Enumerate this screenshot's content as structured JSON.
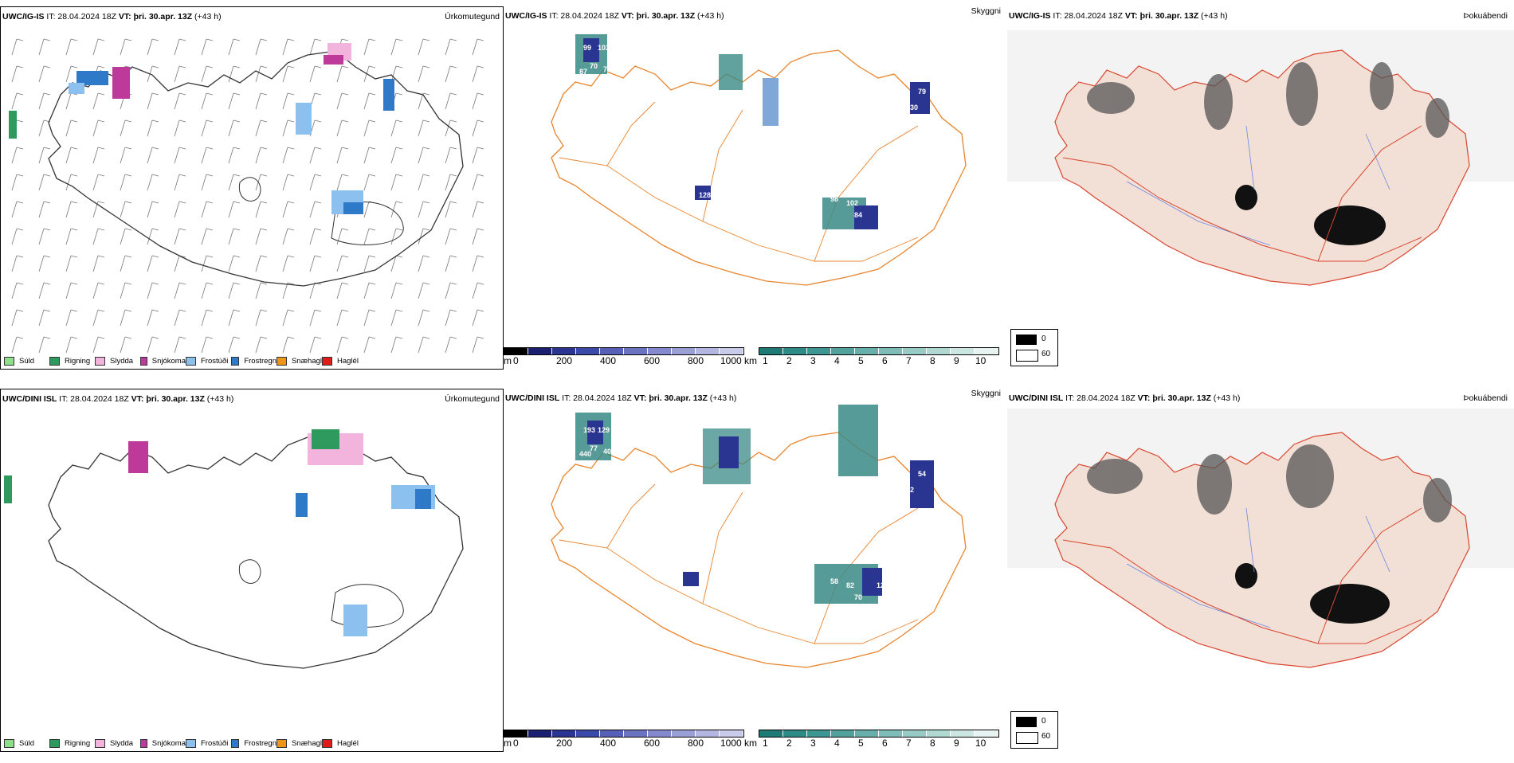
{
  "rows": [
    {
      "model": "UWC/IG-IS",
      "it": "IT: 28.04.2024 18Z",
      "vt": "VT: þri. 30.apr. 13Z",
      "lead": "(+43 h)",
      "titles": [
        "Úrkomutegund",
        "Skyggni",
        "Þokuábendi"
      ]
    },
    {
      "model": "UWC/DINI ISL",
      "it": "IT: 28.04.2024 18Z",
      "vt": "VT: þri. 30.apr. 13Z",
      "lead": "(+43 h)",
      "titles": [
        "Úrkomutegund",
        "Skyggni",
        "Þokuábendi"
      ]
    }
  ],
  "legend": [
    {
      "label": "Súld",
      "color": "#8fdf8a"
    },
    {
      "label": "Rigning",
      "color": "#2e9a5e"
    },
    {
      "label": "Slydda",
      "color": "#f2b3dc"
    },
    {
      "label": "Snjókoma",
      "color": "#bd3a9a"
    },
    {
      "label": "Frostúði",
      "color": "#8cc0ee"
    },
    {
      "label": "Frostregn",
      "color": "#2f7ac8"
    },
    {
      "label": "Snæhagl",
      "color": "#f0941c"
    },
    {
      "label": "Haglél",
      "color": "#e01b1b"
    }
  ],
  "cbar_m": {
    "unit": "m",
    "ticks": [
      "0",
      "200",
      "400",
      "600",
      "800",
      "1000"
    ]
  },
  "cbar_km": {
    "unit": "km",
    "ticks": [
      "1",
      "2",
      "3",
      "4",
      "5",
      "6",
      "7",
      "8",
      "9",
      "10"
    ]
  },
  "fog_key": {
    "a": "0",
    "b": "60"
  },
  "visibility_labels_row1": [
    "99",
    "103",
    "70",
    "71",
    "87",
    "54",
    "79",
    "130",
    "83",
    "98",
    "102",
    "97",
    "84",
    "87",
    "11",
    "128",
    "84"
  ],
  "visibility_labels_row2": [
    "193",
    "129",
    "77",
    "407",
    "440",
    "90",
    "54",
    "92",
    "68",
    "58",
    "82",
    "129",
    "96",
    "59",
    "74",
    "83",
    "70"
  ]
}
